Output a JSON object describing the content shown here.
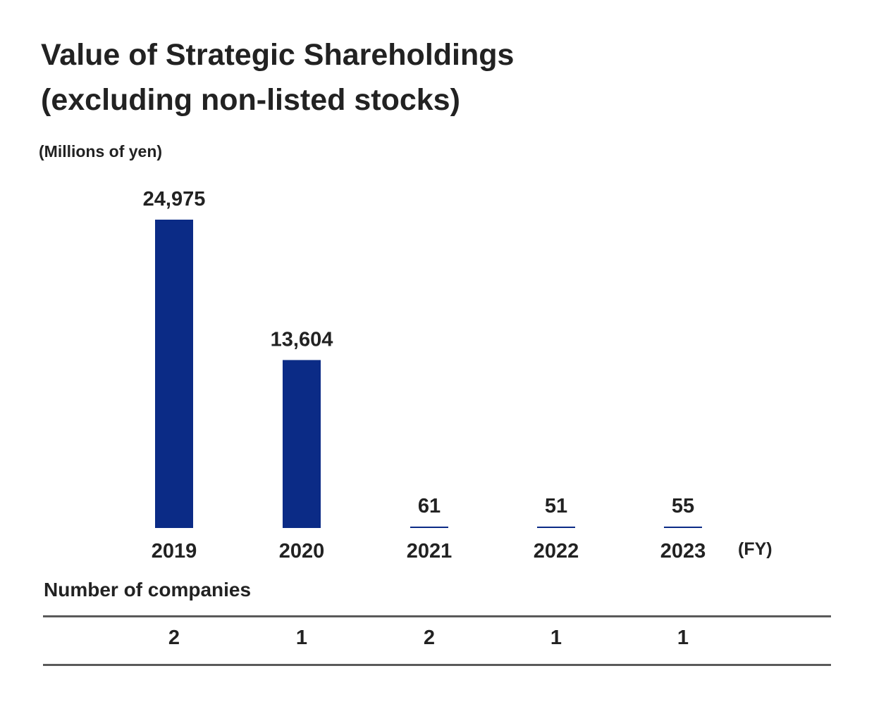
{
  "title_line1": "Value of Strategic Shareholdings",
  "title_line2": "(excluding non-listed stocks)",
  "unit_label": "(Millions of yen)",
  "x_unit_label": "(FY)",
  "companies_heading": "Number of companies",
  "colors": {
    "bar": "#0b2b86",
    "text": "#222222",
    "rule": "#5a5a5a"
  },
  "chart_data": {
    "type": "bar",
    "title": "Value of Strategic Shareholdings (excluding non-listed stocks)",
    "ylabel": "(Millions of yen)",
    "xlabel": "(FY)",
    "categories": [
      "2019",
      "2020",
      "2021",
      "2022",
      "2023"
    ],
    "values": [
      24975,
      13604,
      61,
      51,
      55
    ],
    "value_labels": [
      "24,975",
      "13,604",
      "61",
      "51",
      "55"
    ],
    "ylim": [
      0,
      24975
    ],
    "grid": false,
    "legend": "none"
  },
  "company_counts": [
    "2",
    "1",
    "2",
    "1",
    "1"
  ]
}
